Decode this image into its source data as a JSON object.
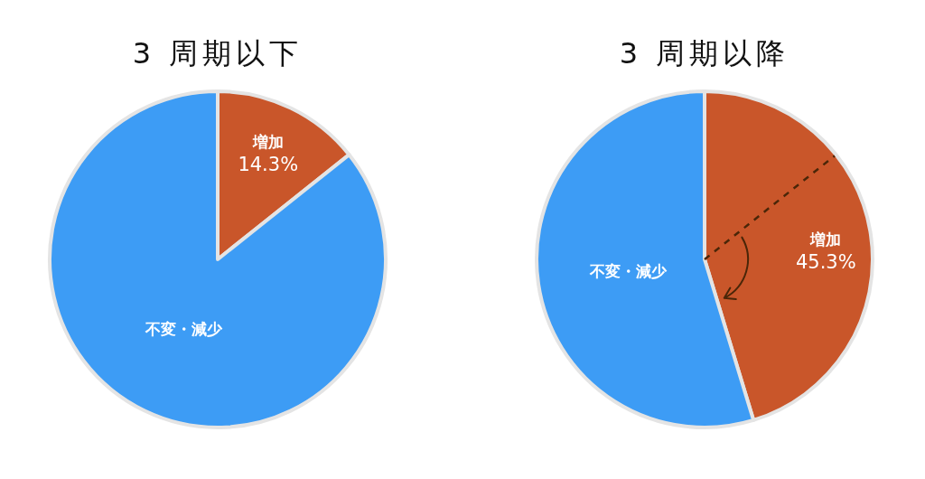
{
  "chart_data": [
    {
      "type": "pie",
      "title": "3 周期以下",
      "categories": [
        "増加",
        "不変・減少"
      ],
      "values": [
        14.3,
        85.7
      ],
      "colors": [
        "#c9562a",
        "#3d9cf5"
      ],
      "value_labels": [
        "14.3%",
        null
      ]
    },
    {
      "type": "pie",
      "title": "3 周期以降",
      "categories": [
        "増加",
        "不変・減少"
      ],
      "values": [
        45.3,
        54.7
      ],
      "colors": [
        "#c9562a",
        "#3d9cf5"
      ],
      "value_labels": [
        "45.3%",
        null
      ],
      "needle": "増加"
    }
  ]
}
